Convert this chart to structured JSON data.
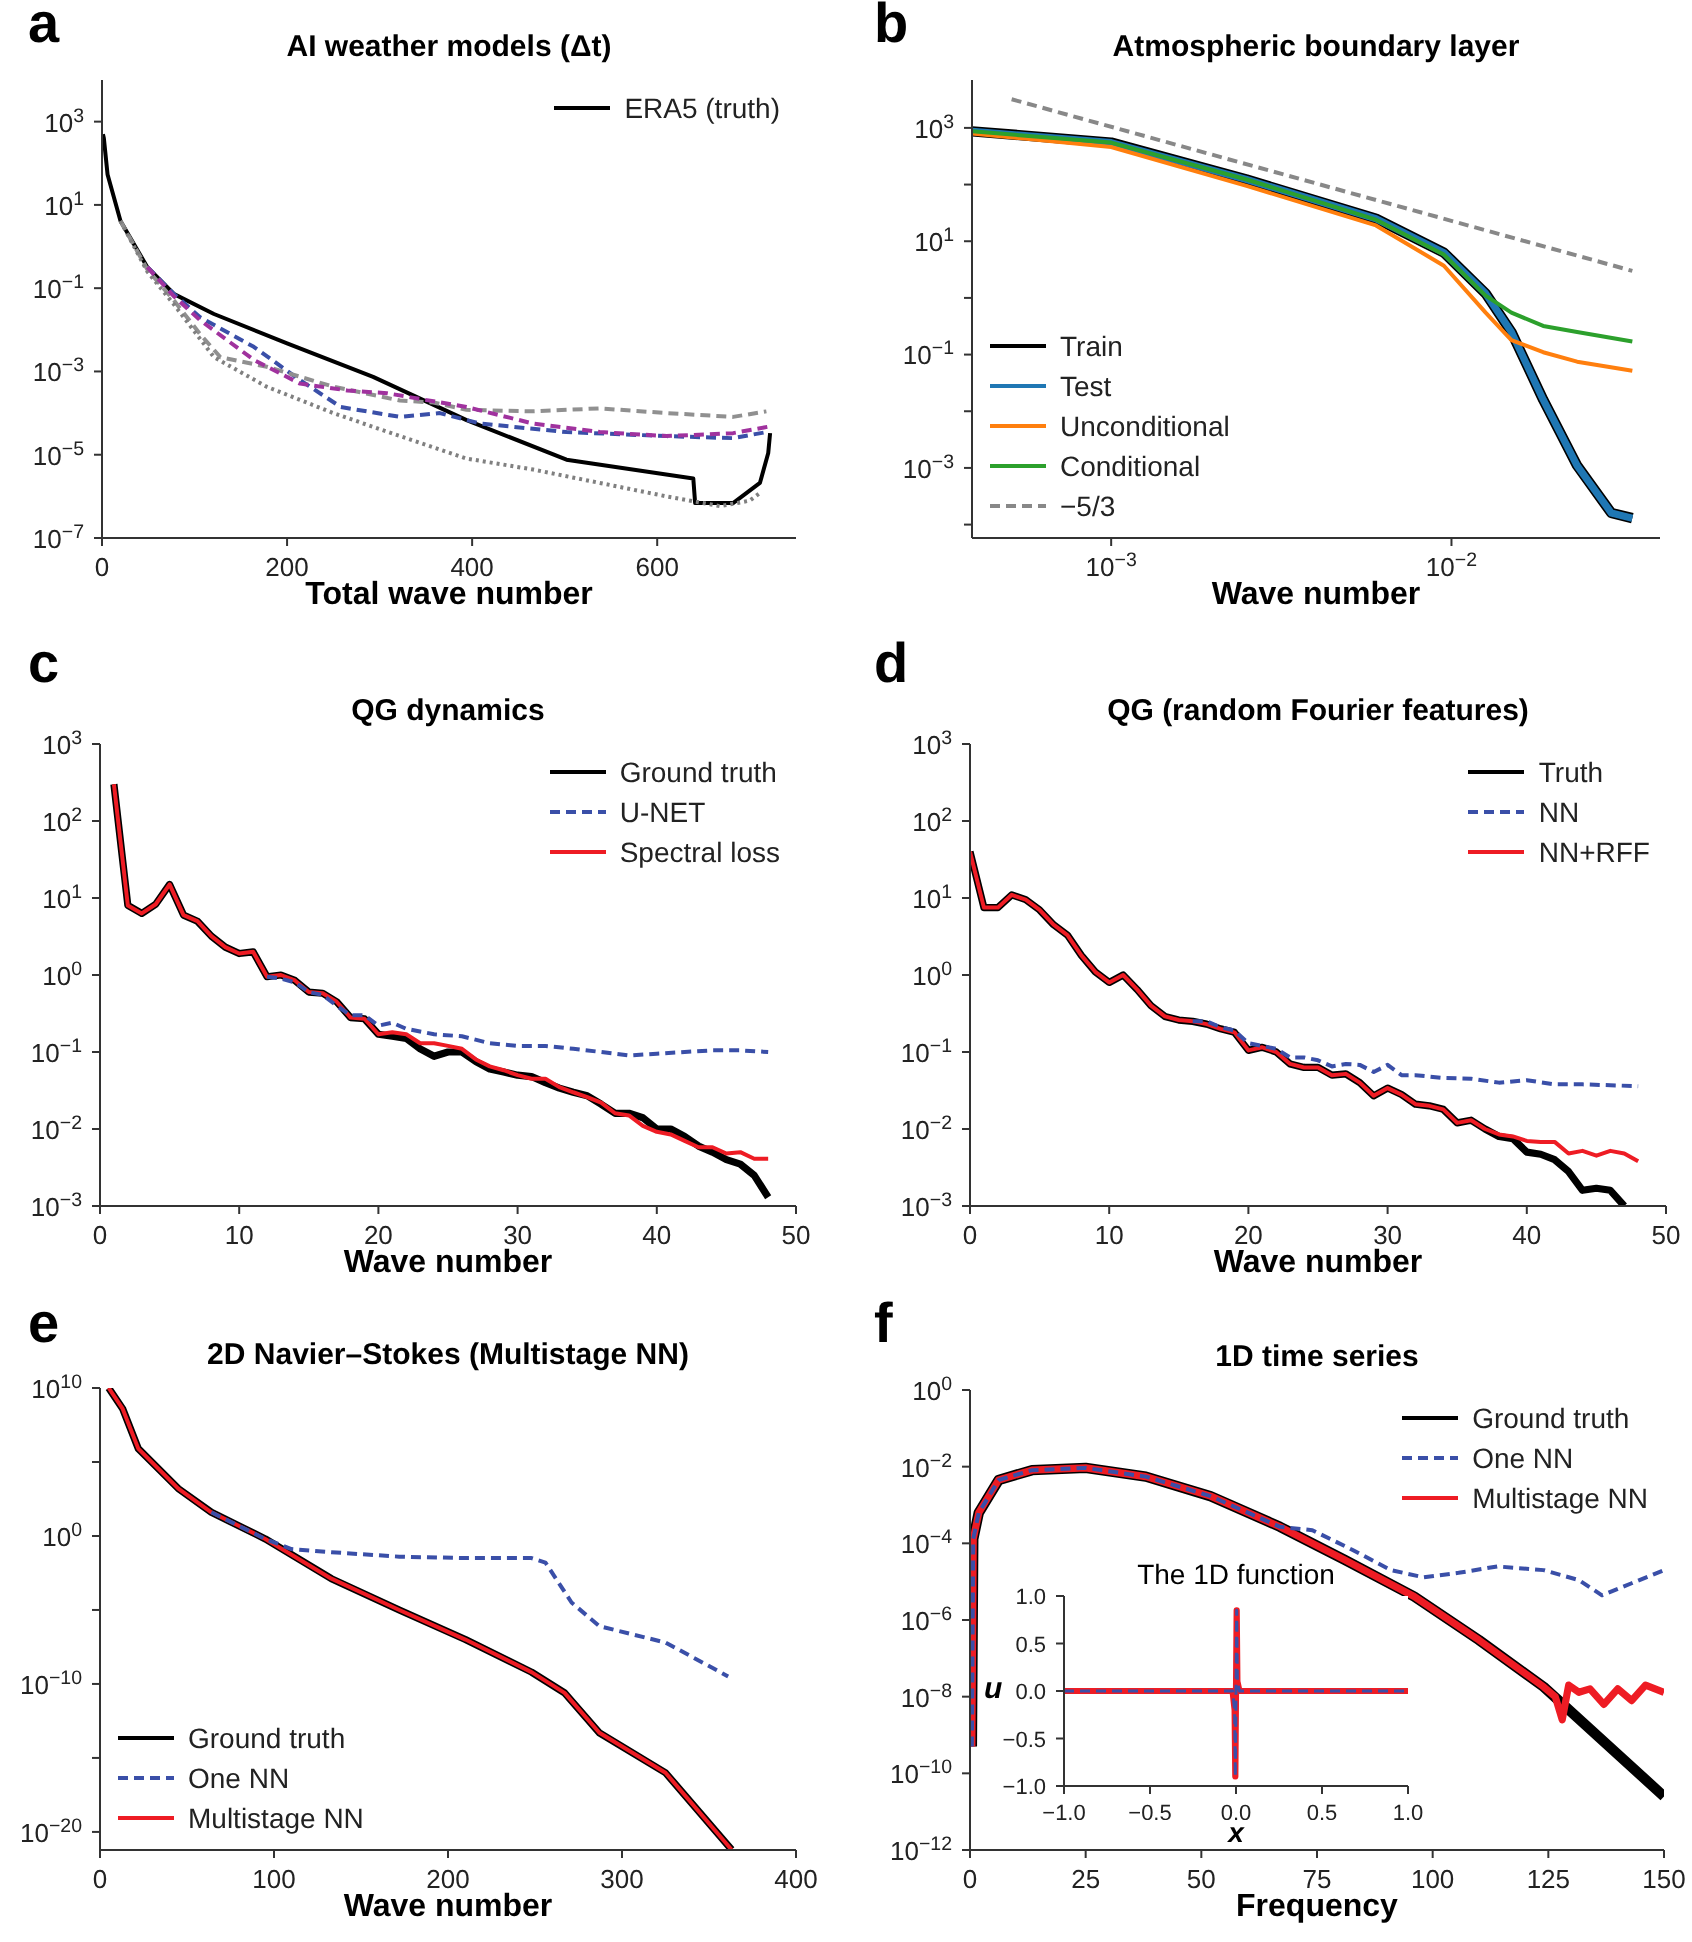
{
  "chart_data": [
    {
      "type": "line",
      "title": "AI weather models (Δ$_{}$t)",
      "annotations": [
        "a"
      ],
      "xlabel": "Total wave number",
      "log": "y",
      "legend": "top right",
      "xlim": [
        0,
        750
      ],
      "xticks": [
        0,
        200,
        400,
        600
      ],
      "ylim": [
        1e-07,
        10000.0
      ],
      "yticks": [
        {
          "value": 1000,
          "label": "10$^{3}$"
        },
        {
          "value": 10,
          "label": "10$^{1}$"
        },
        {
          "value": 0.1,
          "label": "10$^{−1}$"
        },
        {
          "value": 0.001,
          "label": "10$^{−3}$"
        },
        {
          "value": 1e-05,
          "label": "10$^{−5}$"
        },
        {
          "value": 1e-07,
          "label": "10$^{−7}$"
        }
      ],
      "series": [
        {
          "color": "#3a4fa8",
          "line_style": "dashed",
          "x": [
            49,
            78,
            106,
            164,
            214,
            258,
            322,
            365,
            409,
            502,
            610,
            682,
            718
          ],
          "values": [
            0.32,
            0.072,
            0.02,
            0.0039,
            0.00062,
            0.00014,
            8.1e-05,
            0.0001,
            5.6e-05,
            3.5e-05,
            2.8e-05,
            2.5e-05,
            3.5e-05
          ]
        },
        {
          "color": "#909090",
          "line_style": "dashed",
          "x": [
            20,
            49,
            78,
            106,
            128,
            178,
            250,
            322,
            358,
            394,
            466,
            538,
            610,
            682,
            718
          ],
          "values": [
            4.1,
            0.28,
            0.05,
            0.0079,
            0.0022,
            0.0013,
            0.00043,
            0.0002,
            0.00018,
            0.00012,
            0.00011,
            0.00013,
            0.0001,
            8.1e-05,
            0.00011
          ]
        },
        {
          "color": "#808080",
          "line_style": "dotted",
          "x": [
            20,
            49,
            78,
            121,
            178,
            250,
            322,
            394,
            466,
            538,
            610,
            668,
            700,
            711
          ],
          "values": [
            4.1,
            0.25,
            0.04,
            0.0022,
            0.00043,
            0.0001,
            2.8e-05,
            8.1e-06,
            4.4e-06,
            2.1e-06,
            1e-06,
            5.8e-07,
            7.9e-07,
            1.2e-06
          ]
        },
        {
          "color": "#a0329e",
          "line_style": "dashed",
          "x": [
            49,
            78,
            106,
            164,
            214,
            265,
            308,
            394,
            466,
            538,
            610,
            682,
            722
          ],
          "values": [
            0.32,
            0.063,
            0.017,
            0.0019,
            0.00051,
            0.00035,
            0.0003,
            0.00014,
            5.6e-05,
            3.5e-05,
            2.8e-05,
            3.3e-05,
            4.8e-05
          ]
        },
        {
          "name": "ERA5 (truth)",
          "color": "#000000",
          "line_style": "solid",
          "x": [
            1,
            2,
            6,
            20,
            49,
            78,
            121,
            200,
            293,
            394,
            502,
            639,
            641,
            682,
            711,
            720,
            722
          ],
          "values": [
            500,
            400,
            54,
            4.1,
            0.32,
            0.072,
            0.024,
            0.0047,
            0.00074,
            6.8e-05,
            7.6e-06,
            2.7e-06,
            6.9e-07,
            6.9e-07,
            2.1e-06,
            1.1e-05,
            3.3e-05
          ]
        }
      ]
    },
    {
      "type": "line",
      "title": "Atmospheric boundary layer",
      "annotations": [
        "b"
      ],
      "xlabel": "Wave number",
      "log": "xy",
      "legend": "bottom left",
      "xlim": [
        0.00039,
        0.041
      ],
      "xticks": [
        {
          "value": 0.001,
          "label": "10$^{−3}$"
        },
        {
          "value": 0.01,
          "label": "10$^{−2}$"
        }
      ],
      "ylim": [
        5.8e-05,
        7000
      ],
      "yticks": [
        {
          "value": 1000,
          "label": "10$^{3}$"
        },
        {
          "value": 100,
          "label": null
        },
        {
          "value": 10,
          "label": "10$^{1}$"
        },
        {
          "value": 1,
          "label": null
        },
        {
          "value": 0.1,
          "label": "10$^{−1}$"
        },
        {
          "value": 0.01,
          "label": null
        },
        {
          "value": 0.001,
          "label": "10$^{−3}$"
        },
        {
          "value": 0.0001,
          "label": null
        }
      ],
      "series": [
        {
          "name": "Train",
          "color": "#000000",
          "line_style": "solid",
          "x": [
            0.00039,
            0.001,
            0.0025,
            0.006,
            0.0095,
            0.0126,
            0.015,
            0.0186,
            0.0234,
            0.0295,
            0.034
          ],
          "values": [
            870,
            550,
            123,
            25,
            6.3,
            1.2,
            0.25,
            0.016,
            0.0011,
            0.00016,
            0.00013
          ]
        },
        {
          "name": "Test",
          "color": "#1f77b4",
          "line_style": "solid",
          "x": [
            0.00039,
            0.001,
            0.0025,
            0.006,
            0.0095,
            0.0126,
            0.015,
            0.0186,
            0.0234,
            0.0295,
            0.034
          ],
          "values": [
            870,
            550,
            123,
            25,
            6.3,
            1.2,
            0.25,
            0.016,
            0.0011,
            0.00016,
            0.00013
          ]
        },
        {
          "name": "Unconditional",
          "color": "#ff7f0e",
          "line_style": "solid",
          "x": [
            0.00039,
            0.001,
            0.0025,
            0.006,
            0.0095,
            0.0126,
            0.015,
            0.0186,
            0.0234,
            0.034
          ],
          "values": [
            800,
            460,
            95,
            19,
            3.7,
            0.55,
            0.18,
            0.11,
            0.075,
            0.052
          ]
        },
        {
          "name": "Conditional",
          "color": "#2ca02c",
          "line_style": "solid",
          "x": [
            0.00039,
            0.001,
            0.0025,
            0.006,
            0.0095,
            0.0126,
            0.015,
            0.0186,
            0.0234,
            0.034
          ],
          "values": [
            870,
            550,
            123,
            24,
            5.8,
            1.1,
            0.55,
            0.32,
            0.25,
            0.17
          ]
        },
        {
          "name": "−5/3",
          "color": "#888888",
          "line_style": "dashed",
          "x": [
            0.00051,
            0.034
          ],
          "values": [
            3200,
            3.0
          ]
        }
      ]
    },
    {
      "type": "line",
      "title": "QG dynamics",
      "annotations": [
        "c"
      ],
      "xlabel": "Wave number",
      "log": "y",
      "legend": "top right",
      "xlim": [
        0,
        50
      ],
      "xticks": [
        0,
        10,
        20,
        30,
        40,
        50
      ],
      "ylim": [
        0.001,
        1000
      ],
      "yticks": [
        {
          "value": 1000,
          "label": "10$^{3}$"
        },
        {
          "value": 100,
          "label": "10$^{2}$"
        },
        {
          "value": 10,
          "label": "10$^{1}$"
        },
        {
          "value": 1,
          "label": "10$^{0}$"
        },
        {
          "value": 0.1,
          "label": "10$^{−1}$"
        },
        {
          "value": 0.01,
          "label": "10$^{−2}$"
        },
        {
          "value": 0.001,
          "label": "10$^{−3}$"
        }
      ],
      "series": [
        {
          "name": "Ground truth",
          "color": "#000000",
          "line_style": "solid",
          "x": [
            1,
            2,
            3,
            4,
            5,
            6,
            7,
            8,
            9,
            10,
            11,
            12,
            13,
            14,
            15,
            16,
            17,
            18,
            19,
            20,
            21,
            22,
            23,
            24,
            25,
            26,
            27,
            28,
            29,
            30,
            31,
            32,
            33,
            34,
            35,
            36,
            37,
            38,
            39,
            40,
            41,
            42,
            43,
            44,
            45,
            46,
            47,
            48
          ],
          "values": [
            300,
            8,
            6.3,
            8.3,
            15,
            6,
            5,
            3.2,
            2.3,
            1.9,
            2,
            0.95,
            1,
            0.85,
            0.6,
            0.58,
            0.45,
            0.28,
            0.27,
            0.17,
            0.16,
            0.15,
            0.11,
            0.088,
            0.1,
            0.1,
            0.075,
            0.06,
            0.055,
            0.05,
            0.048,
            0.04,
            0.034,
            0.03,
            0.027,
            0.021,
            0.016,
            0.016,
            0.014,
            0.01,
            0.01,
            0.008,
            0.006,
            0.005,
            0.004,
            0.0035,
            0.0025,
            0.0013
          ]
        },
        {
          "name": "U-NET",
          "color": "#3a4fa8",
          "line_style": "dashed",
          "x": [
            12,
            13,
            14,
            15,
            16,
            17,
            18,
            19,
            20,
            21,
            22,
            24,
            26,
            28,
            30,
            32,
            34,
            36,
            38,
            40,
            42,
            44,
            46,
            48
          ],
          "values": [
            0.95,
            0.9,
            0.8,
            0.6,
            0.55,
            0.4,
            0.3,
            0.3,
            0.22,
            0.24,
            0.2,
            0.17,
            0.16,
            0.13,
            0.12,
            0.12,
            0.11,
            0.1,
            0.09,
            0.095,
            0.1,
            0.105,
            0.105,
            0.1
          ]
        },
        {
          "name": "Spectral loss",
          "color": "#ee1c24",
          "line_style": "solid",
          "x": [
            1,
            2,
            3,
            4,
            5,
            6,
            7,
            8,
            9,
            10,
            11,
            12,
            13,
            14,
            15,
            16,
            17,
            18,
            19,
            20,
            21,
            22,
            23,
            24,
            25,
            26,
            27,
            28,
            29,
            30,
            31,
            32,
            33,
            34,
            35,
            36,
            37,
            38,
            39,
            40,
            41,
            42,
            43,
            44,
            45,
            46,
            47,
            48
          ],
          "values": [
            300,
            8,
            6.3,
            8.3,
            15,
            6,
            5,
            3.2,
            2.3,
            1.9,
            2,
            0.95,
            1,
            0.85,
            0.6,
            0.58,
            0.45,
            0.28,
            0.27,
            0.17,
            0.18,
            0.17,
            0.13,
            0.13,
            0.12,
            0.11,
            0.08,
            0.065,
            0.058,
            0.05,
            0.045,
            0.045,
            0.035,
            0.03,
            0.026,
            0.022,
            0.016,
            0.015,
            0.011,
            0.0092,
            0.0085,
            0.007,
            0.0058,
            0.0058,
            0.0048,
            0.005,
            0.0041,
            0.0041
          ]
        }
      ]
    },
    {
      "type": "line",
      "title": "QG (random Fourier features)",
      "annotations": [
        "d"
      ],
      "xlabel": "Wave number",
      "log": "y",
      "legend": "top right",
      "xlim": [
        0,
        50
      ],
      "xticks": [
        0,
        10,
        20,
        30,
        40,
        50
      ],
      "ylim": [
        0.001,
        1000
      ],
      "yticks": [
        {
          "value": 1000,
          "label": "10$^{3}$"
        },
        {
          "value": 100,
          "label": "10$^{2}$"
        },
        {
          "value": 10,
          "label": "10$^{1}$"
        },
        {
          "value": 1,
          "label": "10$^{0}$"
        },
        {
          "value": 0.1,
          "label": "10$^{−1}$"
        },
        {
          "value": 0.01,
          "label": "10$^{−2}$"
        },
        {
          "value": 0.001,
          "label": "10$^{−3}$"
        }
      ],
      "series": [
        {
          "name": "Truth",
          "color": "#000000",
          "line_style": "solid",
          "x": [
            0,
            1,
            2,
            3,
            4,
            5,
            6,
            7,
            8,
            9,
            10,
            11,
            12,
            13,
            14,
            15,
            16,
            17,
            18,
            19,
            20,
            21,
            22,
            23,
            24,
            25,
            26,
            27,
            28,
            29,
            30,
            31,
            32,
            33,
            34,
            35,
            36,
            37,
            38,
            39,
            40,
            41,
            42,
            43,
            44,
            45,
            46,
            47
          ],
          "values": [
            40,
            7.5,
            7.5,
            11,
            9.5,
            7,
            4.5,
            3.3,
            1.8,
            1.1,
            0.8,
            1,
            0.65,
            0.4,
            0.29,
            0.26,
            0.25,
            0.23,
            0.2,
            0.18,
            0.105,
            0.115,
            0.1,
            0.07,
            0.063,
            0.063,
            0.05,
            0.052,
            0.04,
            0.027,
            0.034,
            0.028,
            0.021,
            0.02,
            0.018,
            0.012,
            0.013,
            0.01,
            0.008,
            0.0075,
            0.005,
            0.0047,
            0.004,
            0.0028,
            0.0016,
            0.0017,
            0.0016,
            0.001
          ]
        },
        {
          "name": "NN",
          "color": "#3a4fa8",
          "line_style": "dashed",
          "x": [
            16,
            17,
            18,
            19,
            20,
            21,
            22,
            23,
            24,
            25,
            26,
            27,
            28,
            29,
            30,
            31,
            32,
            34,
            36,
            38,
            40,
            42,
            44,
            46,
            48
          ],
          "values": [
            0.25,
            0.25,
            0.21,
            0.19,
            0.13,
            0.12,
            0.11,
            0.085,
            0.085,
            0.078,
            0.065,
            0.07,
            0.068,
            0.055,
            0.068,
            0.05,
            0.05,
            0.046,
            0.045,
            0.04,
            0.043,
            0.038,
            0.038,
            0.037,
            0.036
          ]
        },
        {
          "name": "NN+RFF",
          "color": "#ee1c24",
          "line_style": "solid",
          "x": [
            0,
            1,
            2,
            3,
            4,
            5,
            6,
            7,
            8,
            9,
            10,
            11,
            12,
            13,
            14,
            15,
            16,
            17,
            18,
            19,
            20,
            21,
            22,
            23,
            24,
            25,
            26,
            27,
            28,
            29,
            30,
            31,
            32,
            33,
            34,
            35,
            36,
            37,
            38,
            39,
            40,
            41,
            42,
            43,
            44,
            45,
            46,
            47,
            48
          ],
          "values": [
            40,
            7.5,
            7.5,
            11,
            9.5,
            7,
            4.5,
            3.3,
            1.8,
            1.1,
            0.8,
            1,
            0.65,
            0.4,
            0.29,
            0.26,
            0.25,
            0.23,
            0.2,
            0.18,
            0.105,
            0.115,
            0.1,
            0.07,
            0.063,
            0.063,
            0.05,
            0.052,
            0.04,
            0.027,
            0.034,
            0.028,
            0.021,
            0.02,
            0.018,
            0.012,
            0.013,
            0.01,
            0.0085,
            0.008,
            0.007,
            0.0068,
            0.0068,
            0.0048,
            0.0052,
            0.0045,
            0.0052,
            0.0048,
            0.0038
          ]
        }
      ]
    },
    {
      "type": "line",
      "title": "2D Navier–Stokes (Multistage NN)",
      "annotations": [
        "e"
      ],
      "xlabel": "Wave number",
      "log": "y",
      "legend": "bottom left",
      "xlim": [
        0,
        400
      ],
      "xticks": [
        0,
        100,
        200,
        300,
        400
      ],
      "ylim": [
        6e-22,
        10000000000.0
      ],
      "yticks": [
        {
          "value": 10000000000.0,
          "label": "10$^{10}$"
        },
        {
          "value": 100000.0,
          "label": null
        },
        {
          "value": 1,
          "label": "10$^{0}$"
        },
        {
          "value": 1e-05,
          "label": null
        },
        {
          "value": 1e-10,
          "label": "10$^{−10}$"
        },
        {
          "value": 1e-15,
          "label": null
        },
        {
          "value": 1e-20,
          "label": "10$^{−20}$"
        }
      ],
      "series": [
        {
          "name": "Ground truth",
          "color": "#000000",
          "line_style": "solid",
          "x": [
            5,
            13,
            22,
            45,
            64,
            95,
            133,
            172,
            210,
            248,
            267,
            287,
            325,
            363
          ],
          "values": [
            10000000000.0,
            400000000.0,
            800000.0,
            1600.0,
            40,
            0.63,
            0.0013,
            1e-05,
            1e-07,
            6.3e-10,
            2.5e-11,
            5e-14,
            1e-16,
            6.3e-22
          ]
        },
        {
          "name": "One NN",
          "color": "#3a4fa8",
          "line_style": "dashed",
          "x": [
            64,
            95,
            110,
            133,
            172,
            210,
            248,
            256,
            271,
            287,
            325,
            361
          ],
          "values": [
            40,
            0.63,
            0.13,
            0.08,
            0.04,
            0.032,
            0.032,
            0.016,
            3.2e-05,
            8e-07,
            6.3e-08,
            3.2e-10
          ]
        },
        {
          "name": "Multistage NN",
          "color": "#ee1c24",
          "line_style": "solid",
          "x": [
            5,
            13,
            22,
            45,
            64,
            95,
            133,
            172,
            210,
            248,
            267,
            287,
            325,
            363
          ],
          "values": [
            10000000000.0,
            400000000.0,
            800000.0,
            1600.0,
            40,
            0.63,
            0.0013,
            1e-05,
            1e-07,
            6.3e-10,
            2.5e-11,
            5e-14,
            1e-16,
            6.3e-22
          ]
        }
      ]
    },
    {
      "type": "line",
      "title": "1D time series",
      "annotations": [
        "f"
      ],
      "xlabel": "Frequency",
      "log": "y",
      "legend": "top right",
      "xlim": [
        0,
        150
      ],
      "xticks": [
        0,
        25,
        50,
        75,
        100,
        125,
        150
      ],
      "ylim": [
        1e-12,
        1
      ],
      "yticks": [
        {
          "value": 1,
          "label": "10$^{0}$"
        },
        {
          "value": 0.01,
          "label": "10$^{−2}$"
        },
        {
          "value": 0.0001,
          "label": "10$^{−4}$"
        },
        {
          "value": 1e-06,
          "label": "10$^{−6}$"
        },
        {
          "value": 1e-08,
          "label": "10$^{−8}$"
        },
        {
          "value": 1e-10,
          "label": "10$^{−10}$"
        },
        {
          "value": 1e-12,
          "label": "10$^{−12}$"
        }
      ],
      "series": [
        {
          "name": "Ground truth",
          "color": "#000000",
          "line_style": "solid",
          "x": [
            0.4,
            0.7,
            1.9,
            6.2,
            13.4,
            25,
            38,
            52,
            67,
            81,
            96,
            110,
            124,
            150
          ],
          "values": [
            5e-10,
            0.00013,
            0.00063,
            0.0045,
            0.0081,
            0.0093,
            0.0055,
            0.0017,
            0.00027,
            3.7e-05,
            4.1e-06,
            3e-07,
            1.8e-08,
            2.5e-11
          ]
        },
        {
          "name": "One NN",
          "color": "#3a4fa8",
          "line_style": "dashed",
          "x": [
            0.4,
            0.7,
            1.9,
            6.2,
            13.4,
            25,
            38,
            52,
            67,
            74,
            82.6,
            91,
            98,
            105.6,
            114,
            124,
            131.6,
            136.6,
            143,
            150
          ],
          "values": [
            5e-10,
            0.00013,
            0.00063,
            0.0045,
            0.0081,
            0.0093,
            0.0055,
            0.0017,
            0.00027,
            0.00022,
            6.8e-05,
            2e-05,
            1.3e-05,
            1.7e-05,
            2.5e-05,
            2e-05,
            1.1e-05,
            4.4e-06,
            9.1e-06,
            2e-05
          ]
        },
        {
          "name": "Multistage NN",
          "color": "#ee1c24",
          "line_style": "solid",
          "x": [
            0.4,
            0.7,
            1.9,
            6.2,
            13.4,
            25,
            38,
            52,
            67,
            81,
            96,
            110,
            124,
            126.5,
            128,
            129.4,
            131.6,
            134,
            137,
            140,
            143,
            146,
            150
          ],
          "values": [
            5e-10,
            0.00013,
            0.00063,
            0.0045,
            0.0081,
            0.0093,
            0.0055,
            0.0017,
            0.00027,
            3.7e-05,
            4.1e-06,
            3e-07,
            1.8e-08,
            1e-08,
            2.5e-09,
            2e-08,
            1.3e-08,
            1.6e-08,
            6.3e-09,
            1.6e-08,
            7.9e-09,
            2e-08,
            1.3e-08
          ]
        }
      ]
    },
    {
      "type": "line",
      "title": "The 1D function",
      "xlabel": "x",
      "ylabel": "u",
      "xlim": [
        -1,
        1
      ],
      "ylim": [
        -1,
        1
      ],
      "xticks": [
        {
          "value": -1,
          "label": "−1.0"
        },
        {
          "value": -0.5,
          "label": "−0.5"
        },
        {
          "value": 0,
          "label": "0.0"
        },
        {
          "value": 0.5,
          "label": "0.5"
        },
        {
          "value": 1,
          "label": "1.0"
        }
      ],
      "yticks": [
        {
          "value": -1,
          "label": "−1.0"
        },
        {
          "value": -0.5,
          "label": "−0.5"
        },
        {
          "value": 0,
          "label": "0.0"
        },
        {
          "value": 0.5,
          "label": "0.5"
        },
        {
          "value": 1,
          "label": "1.0"
        }
      ],
      "series": [
        {
          "color": "#3a4fa8",
          "line_style": "dashed",
          "x": [
            -1,
            -0.02,
            -0.008,
            -0.004,
            0,
            0.004,
            0.008,
            0.02,
            1
          ],
          "values": [
            0,
            0,
            -0.2,
            -0.9,
            0,
            0.85,
            0.1,
            0,
            0
          ]
        },
        {
          "color": "#ee1c24",
          "line_style": "solid",
          "x": [
            -1,
            -0.02,
            -0.008,
            -0.004,
            0,
            0.004,
            0.008,
            0.02,
            1
          ],
          "values": [
            0,
            0,
            -0.2,
            -0.9,
            0,
            0.85,
            0.1,
            0,
            0
          ]
        }
      ]
    }
  ]
}
